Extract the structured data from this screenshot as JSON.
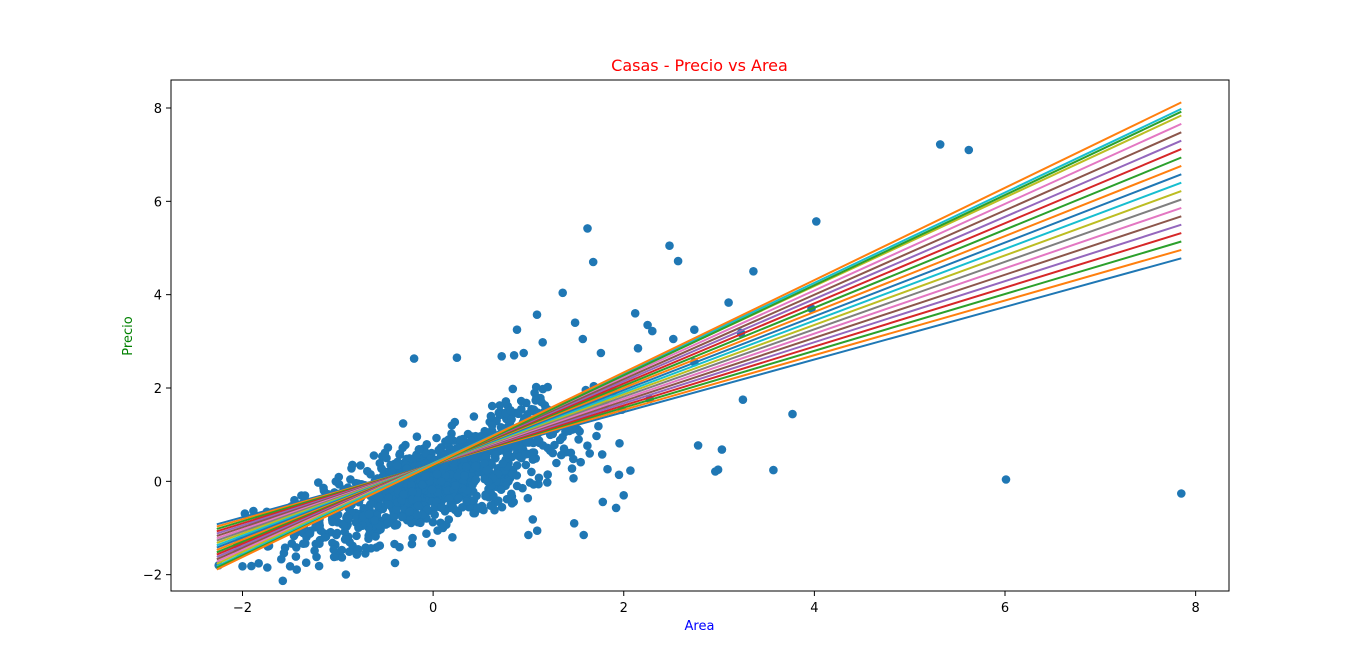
{
  "chart_data": {
    "type": "scatter",
    "title": "Casas - Precio vs Area",
    "xlabel": "Area",
    "ylabel": "Precio",
    "xlim": [
      -2.75,
      8.35
    ],
    "ylim": [
      -2.35,
      8.6
    ],
    "x_ticks": [
      -2,
      0,
      2,
      4,
      6,
      8
    ],
    "y_ticks": [
      -2,
      0,
      2,
      4,
      6,
      8
    ],
    "x_tick_labels": [
      "−2",
      "0",
      "2",
      "4",
      "6",
      "8"
    ],
    "y_tick_labels": [
      "−2",
      "0",
      "2",
      "4",
      "6",
      "8"
    ],
    "grid": false,
    "colors": {
      "title": "#ff0000",
      "xlabel": "#0000ff",
      "ylabel": "#008000",
      "points": "#1f77b4"
    },
    "scatter_outliers": [
      [
        5.32,
        7.22
      ],
      [
        5.62,
        7.1
      ],
      [
        4.02,
        5.57
      ],
      [
        1.62,
        5.42
      ],
      [
        2.48,
        5.05
      ],
      [
        2.57,
        4.72
      ],
      [
        1.68,
        4.7
      ],
      [
        3.36,
        4.5
      ],
      [
        1.36,
        4.04
      ],
      [
        3.1,
        3.83
      ],
      [
        1.09,
        3.57
      ],
      [
        2.12,
        3.6
      ],
      [
        1.49,
        3.4
      ],
      [
        2.25,
        3.35
      ],
      [
        2.3,
        3.22
      ],
      [
        2.74,
        3.25
      ],
      [
        3.23,
        3.18
      ],
      [
        3.97,
        3.7
      ],
      [
        0.88,
        3.25
      ],
      [
        2.52,
        3.05
      ],
      [
        1.57,
        3.05
      ],
      [
        1.15,
        2.98
      ],
      [
        1.76,
        2.75
      ],
      [
        2.15,
        2.85
      ],
      [
        -0.2,
        2.63
      ],
      [
        0.25,
        2.65
      ],
      [
        0.95,
        2.75
      ],
      [
        0.85,
        2.7
      ],
      [
        0.72,
        2.68
      ],
      [
        3.25,
        1.75
      ],
      [
        3.77,
        1.44
      ],
      [
        2.78,
        0.77
      ],
      [
        3.03,
        0.68
      ],
      [
        2.99,
        0.25
      ],
      [
        2.96,
        0.21
      ],
      [
        3.57,
        0.24
      ],
      [
        6.01,
        0.04
      ],
      [
        7.85,
        -0.26
      ],
      [
        2.07,
        0.23
      ],
      [
        1.95,
        0.14
      ],
      [
        1.83,
        0.26
      ],
      [
        2.0,
        -0.3
      ],
      [
        1.78,
        -0.44
      ],
      [
        1.92,
        -0.57
      ],
      [
        1.48,
        -0.9
      ],
      [
        1.58,
        -1.15
      ],
      [
        -2.25,
        -1.8
      ],
      [
        -2.0,
        -1.82
      ],
      [
        -1.5,
        -1.82
      ],
      [
        -0.4,
        -1.75
      ],
      [
        1.0,
        -1.15
      ]
    ],
    "line_fits": [
      {
        "color": "#1f77b4",
        "y_left": -0.92,
        "y_right": 4.78
      },
      {
        "color": "#ff7f0e",
        "y_left": -0.97,
        "y_right": 4.96
      },
      {
        "color": "#2ca02c",
        "y_left": -1.02,
        "y_right": 5.14
      },
      {
        "color": "#d62728",
        "y_left": -1.07,
        "y_right": 5.32
      },
      {
        "color": "#9467bd",
        "y_left": -1.12,
        "y_right": 5.5
      },
      {
        "color": "#8c564b",
        "y_left": -1.17,
        "y_right": 5.68
      },
      {
        "color": "#e377c2",
        "y_left": -1.22,
        "y_right": 5.86
      },
      {
        "color": "#7f7f7f",
        "y_left": -1.27,
        "y_right": 6.04
      },
      {
        "color": "#bcbd22",
        "y_left": -1.32,
        "y_right": 6.22
      },
      {
        "color": "#17becf",
        "y_left": -1.37,
        "y_right": 6.4
      },
      {
        "color": "#1f77b4",
        "y_left": -1.42,
        "y_right": 6.58
      },
      {
        "color": "#ff7f0e",
        "y_left": -1.47,
        "y_right": 6.76
      },
      {
        "color": "#2ca02c",
        "y_left": -1.52,
        "y_right": 6.94
      },
      {
        "color": "#d62728",
        "y_left": -1.57,
        "y_right": 7.12
      },
      {
        "color": "#9467bd",
        "y_left": -1.62,
        "y_right": 7.3
      },
      {
        "color": "#8c564b",
        "y_left": -1.67,
        "y_right": 7.48
      },
      {
        "color": "#e377c2",
        "y_left": -1.72,
        "y_right": 7.66
      },
      {
        "color": "#bcbd22",
        "y_left": -1.77,
        "y_right": 7.84
      },
      {
        "color": "#17becf",
        "y_left": -1.82,
        "y_right": 7.98
      },
      {
        "color": "#2ca02c",
        "y_left": -1.85,
        "y_right": 7.92
      },
      {
        "color": "#ff7f0e",
        "y_left": -1.89,
        "y_right": 8.12
      }
    ],
    "line_x_range": [
      -2.27,
      7.85
    ]
  }
}
